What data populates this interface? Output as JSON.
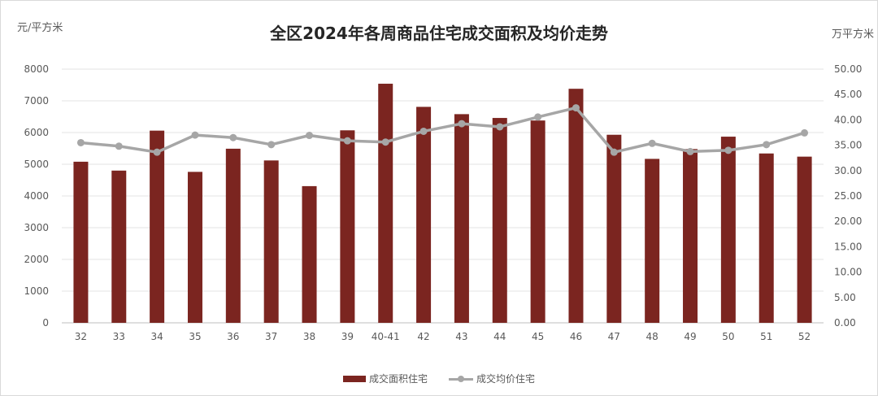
{
  "chart_data": {
    "type": "bar+line",
    "title": "全区2024年各周商品住宅成交面积及均价走势",
    "y_left_unit": "元/平方米",
    "y_right_unit": "万平方米",
    "categories": [
      "32",
      "33",
      "34",
      "35",
      "36",
      "37",
      "38",
      "39",
      "40-41",
      "42",
      "43",
      "44",
      "45",
      "46",
      "47",
      "48",
      "49",
      "50",
      "51",
      "52"
    ],
    "y_left_ticks": [
      "0",
      "1000",
      "2000",
      "3000",
      "4000",
      "5000",
      "6000",
      "7000",
      "8000"
    ],
    "y_right_ticks": [
      "0.00",
      "5.00",
      "10.00",
      "15.00",
      "20.00",
      "25.00",
      "30.00",
      "35.00",
      "40.00",
      "45.00",
      "50.00"
    ],
    "ylim_left": [
      0,
      8000
    ],
    "ylim_right": [
      0,
      50
    ],
    "series": [
      {
        "name": "成交面积住宅",
        "kind": "bar",
        "axis": "left",
        "color": "#7b2520",
        "values": [
          5080,
          4800,
          6060,
          4760,
          5490,
          5120,
          4310,
          6070,
          7540,
          6810,
          6580,
          6460,
          6380,
          7380,
          5930,
          5170,
          5480,
          5870,
          5340,
          5240
        ]
      },
      {
        "name": "成交均价住宅",
        "kind": "line",
        "axis": "left",
        "color": "#a6a6a6",
        "values": [
          5680,
          5570,
          5380,
          5920,
          5840,
          5620,
          5910,
          5740,
          5700,
          6040,
          6280,
          6180,
          6490,
          6780,
          5380,
          5660,
          5400,
          5440,
          5620,
          5990
        ]
      }
    ],
    "legend_position": "bottom",
    "grid": true
  }
}
